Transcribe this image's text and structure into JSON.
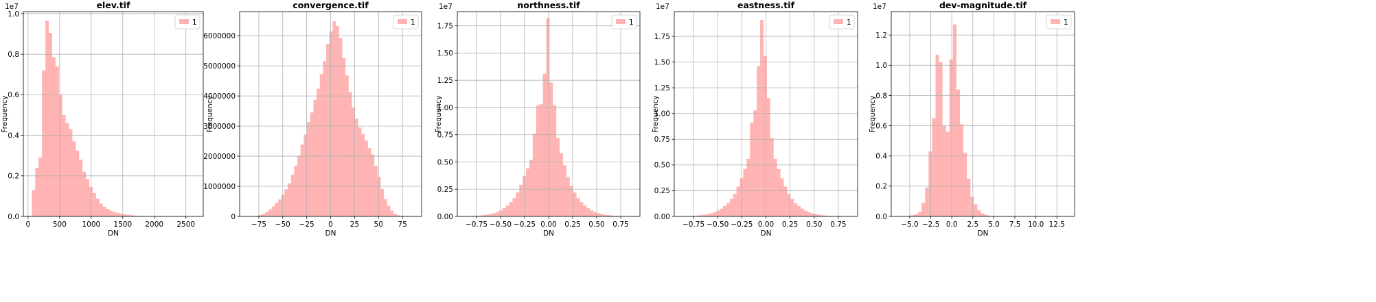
{
  "chart_data": [
    {
      "type": "bar",
      "title": "elev.tif",
      "xlabel": "DN",
      "ylabel": "Frequency",
      "offset_text": "1e7",
      "legend": {
        "label": "1",
        "placement": "top-right"
      },
      "grid": true,
      "color": "#ff8080",
      "xlim": [
        -75,
        2775
      ],
      "ylim": [
        0,
        1.01
      ],
      "xticks": [
        0,
        500,
        1000,
        1500,
        2000,
        2500
      ],
      "xtick_labels": [
        "0",
        "500",
        "1000",
        "1500",
        "2000",
        "2500"
      ],
      "yticks": [
        0,
        0.2,
        0.4,
        0.6,
        0.8,
        1.0
      ],
      "ytick_labels": [
        "0.0",
        "0.2",
        "0.4",
        "0.6",
        "0.8",
        "1.0"
      ],
      "bin_start": 60,
      "bin_width": 53.5,
      "values": [
        0.13,
        0.24,
        0.29,
        0.72,
        0.965,
        0.905,
        0.785,
        0.74,
        0.6,
        0.5,
        0.46,
        0.43,
        0.37,
        0.325,
        0.28,
        0.22,
        0.185,
        0.145,
        0.115,
        0.088,
        0.063,
        0.048,
        0.037,
        0.028,
        0.022,
        0.017,
        0.013,
        0.01,
        0.008,
        0.006,
        0.004,
        0.003,
        0.002,
        0.0015,
        0.001,
        0.0007,
        0.0005,
        0.0003,
        0.0002,
        0.0001
      ]
    },
    {
      "type": "bar",
      "title": "convergence.tif",
      "xlabel": "DN",
      "ylabel": "Frequency",
      "offset_text": "",
      "legend": {
        "label": "1",
        "placement": "top-right"
      },
      "grid": true,
      "color": "#ff8080",
      "xlim": [
        -95,
        95
      ],
      "ylim": [
        0,
        6800000
      ],
      "xticks": [
        -75,
        -50,
        -25,
        0,
        25,
        50,
        75
      ],
      "xtick_labels": [
        "−75",
        "−50",
        "−25",
        "0",
        "25",
        "50",
        "75"
      ],
      "yticks": [
        0,
        1000000,
        2000000,
        3000000,
        4000000,
        5000000,
        6000000
      ],
      "ytick_labels": [
        "0",
        "1000000",
        "2000000",
        "3000000",
        "4000000",
        "5000000",
        "6000000"
      ],
      "bin_start": -85,
      "bin_width": 3.35,
      "values": [
        2000,
        8000,
        20000,
        50000,
        90000,
        150000,
        230000,
        330000,
        450000,
        560000,
        720000,
        900000,
        1100000,
        1380000,
        1680000,
        2020000,
        2380000,
        2720000,
        3130000,
        3450000,
        3870000,
        4240000,
        4720000,
        5160000,
        5730000,
        6140000,
        6480000,
        6320000,
        5930000,
        5260000,
        4680000,
        4130000,
        3620000,
        3240000,
        2950000,
        2740000,
        2520000,
        2270000,
        2060000,
        1680000,
        1310000,
        910000,
        570000,
        350000,
        190000,
        90000,
        40000,
        15000,
        5000,
        2000
      ]
    },
    {
      "type": "bar",
      "title": "northness.tif",
      "xlabel": "DN",
      "ylabel": "Frequency",
      "offset_text": "1e7",
      "legend": {
        "label": "1",
        "placement": "top-right"
      },
      "grid": true,
      "color": "#ff8080",
      "xlim": [
        -0.95,
        0.95
      ],
      "ylim": [
        0,
        1.88
      ],
      "xticks": [
        -0.75,
        -0.5,
        -0.25,
        0,
        0.25,
        0.5,
        0.75
      ],
      "xtick_labels": [
        "−0.75",
        "−0.50",
        "−0.25",
        "0.00",
        "0.25",
        "0.50",
        "0.75"
      ],
      "yticks": [
        0,
        0.25,
        0.5,
        0.75,
        1.0,
        1.25,
        1.5,
        1.75
      ],
      "ytick_labels": [
        "0.00",
        "0.25",
        "0.50",
        "0.75",
        "1.00",
        "1.25",
        "1.50",
        "1.75"
      ],
      "bin_start": -0.9,
      "bin_width": 0.035,
      "values": [
        0.0005,
        0.001,
        0.002,
        0.003,
        0.005,
        0.008,
        0.012,
        0.016,
        0.022,
        0.03,
        0.04,
        0.055,
        0.075,
        0.1,
        0.13,
        0.17,
        0.22,
        0.29,
        0.37,
        0.44,
        0.52,
        0.76,
        1.02,
        1.03,
        1.31,
        1.82,
        1.23,
        1.02,
        0.72,
        0.58,
        0.47,
        0.36,
        0.28,
        0.22,
        0.17,
        0.13,
        0.1,
        0.075,
        0.055,
        0.04,
        0.03,
        0.022,
        0.016,
        0.012,
        0.008,
        0.005,
        0.003,
        0.002,
        0.001,
        0.0005
      ]
    },
    {
      "type": "bar",
      "title": "eastness.tif",
      "xlabel": "DN",
      "ylabel": "Frequency",
      "offset_text": "1e7",
      "legend": {
        "label": "1",
        "placement": "top-right"
      },
      "grid": true,
      "color": "#ff8080",
      "xlim": [
        -0.95,
        0.95
      ],
      "ylim": [
        0,
        1.99
      ],
      "xticks": [
        -0.75,
        -0.5,
        -0.25,
        0,
        0.25,
        0.5,
        0.75
      ],
      "xtick_labels": [
        "−0.75",
        "−0.50",
        "−0.25",
        "0.00",
        "0.25",
        "0.50",
        "0.75"
      ],
      "yticks": [
        0,
        0.25,
        0.5,
        0.75,
        1.0,
        1.25,
        1.5,
        1.75
      ],
      "ytick_labels": [
        "0.00",
        "0.25",
        "0.50",
        "0.75",
        "1.00",
        "1.25",
        "1.50",
        "1.75"
      ],
      "bin_start": -0.9,
      "bin_width": 0.035,
      "values": [
        0.0005,
        0.001,
        0.002,
        0.003,
        0.005,
        0.008,
        0.012,
        0.016,
        0.022,
        0.03,
        0.04,
        0.055,
        0.075,
        0.1,
        0.13,
        0.17,
        0.22,
        0.29,
        0.37,
        0.46,
        0.56,
        0.91,
        1.03,
        1.46,
        1.91,
        1.56,
        1.15,
        0.76,
        0.56,
        0.46,
        0.37,
        0.29,
        0.22,
        0.17,
        0.13,
        0.1,
        0.075,
        0.055,
        0.04,
        0.03,
        0.022,
        0.016,
        0.012,
        0.008,
        0.005,
        0.003,
        0.002,
        0.001,
        0.0005
      ]
    },
    {
      "type": "bar",
      "title": "dev-magnitude.tif",
      "xlabel": "DN",
      "ylabel": "Frequency",
      "offset_text": "1e7",
      "legend": {
        "label": "1",
        "placement": "top-right"
      },
      "grid": true,
      "color": "#ff8080",
      "xlim": [
        -7.2,
        14.6
      ],
      "ylim": [
        0,
        1.355
      ],
      "xticks": [
        -5,
        -2.5,
        0,
        2.5,
        5,
        7.5,
        10,
        12.5
      ],
      "xtick_labels": [
        "−5.0",
        "−2.5",
        "0.0",
        "2.5",
        "5.0",
        "7.5",
        "10.0",
        "12.5"
      ],
      "yticks": [
        0,
        0.2,
        0.4,
        0.6,
        0.8,
        1.0,
        1.2
      ],
      "ytick_labels": [
        "0.0",
        "0.2",
        "0.4",
        "0.6",
        "0.8",
        "1.0",
        "1.2"
      ],
      "bin_start": -6.5,
      "bin_width": 0.415,
      "values": [
        0.0005,
        0.001,
        0.002,
        0.004,
        0.008,
        0.015,
        0.03,
        0.09,
        0.19,
        0.43,
        0.65,
        1.07,
        1.02,
        0.6,
        0.56,
        1.04,
        1.27,
        0.84,
        0.61,
        0.42,
        0.25,
        0.13,
        0.08,
        0.04,
        0.02,
        0.01,
        0.005,
        0.002,
        0.001,
        0.0005
      ]
    }
  ]
}
